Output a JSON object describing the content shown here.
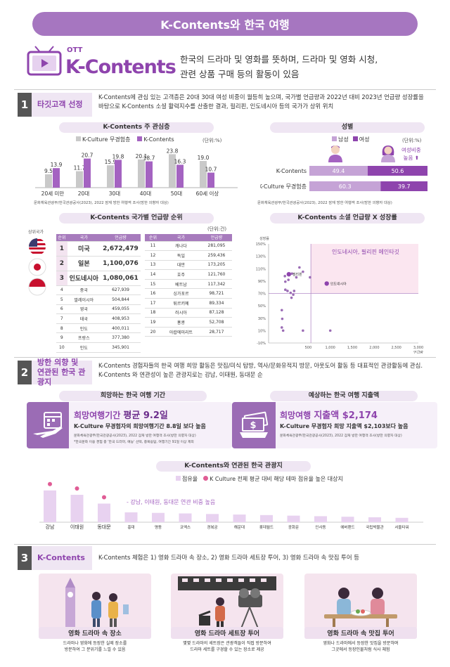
{
  "header": {
    "title": "K-Contents와 한국 여행"
  },
  "hero": {
    "ott": "OTT",
    "brand": "K-Contents",
    "line1": "한국의 드라마 및 영화를 뜻하며, 드라마 및 영화 시청,",
    "line2": "관련 상품 구매 등의 활동이 있음"
  },
  "s1": {
    "num": "1",
    "tag": "타깃고객 선정",
    "desc1": "K-Contents에 관심 있는 고객층은 20대 30대 여성 비중이 월등히 높으며, 국가별 언급량과 2022년 대비 2023년 언급량 성장률을",
    "desc2": "바탕으로 K-Contents 소셜 활력지수를 산출한 결과, 필리핀, 인도네시아 등의 국가가 상위 위치"
  },
  "age_chart": {
    "title": "K-Contents 주 관심층",
    "legend_a": "K-Culture 무경험층",
    "legend_b": "K-Contents",
    "unit": "(단위:%)",
    "source": "문화체육관광부/한국관광공사(2023), 2022 잠재 방한 여행객 조사(방한 의향자 대상)"
  },
  "gender_chart": {
    "title": "성별",
    "legend_m": "남성",
    "legend_f": "여성",
    "unit": "(단위:%)",
    "callout1": "여성비중",
    "callout2": "높음",
    "source": "문화체육관광부/한국관광공사(2023), 2022 잠재 방한 여행객 조사(방한 의향자 대상)"
  },
  "rank": {
    "title": "K-Contents 국가별 언급량 순위",
    "unit": "(단위:건)",
    "side_label": "상위국가",
    "h_rank": "순위",
    "h_country": "국가",
    "h_volume": "언급량"
  },
  "scatter": {
    "title": "K-Contents 소셜 언급량 X 성장률",
    "annotation": "인도네시아, 필리핀 메인타깃",
    "ylabel": "성장률",
    "xlabel": "언급량"
  },
  "s2": {
    "num": "2",
    "tag1": "방한 의향 및",
    "tag2": "연관된 한국 관광지",
    "desc1": "K-Contents 경험자들의 한국 여행 희망 활동은 맛집/미식 탐방, 역사/문화유적지 방문, 아웃도어 활동 등 대표적인 관광활동에 관심.",
    "desc2": "K-Contents 와 연관성이 높은 관광지로는 강남, 이태원, 동대문 순"
  },
  "period": {
    "title": "희망하는 한국 여행 기간",
    "headline_a": "희망여행기간 ",
    "headline_b": "평균 9.2일",
    "sub": "K-Culture 무경험자의 희망여행기간 8.8일 보다 높음",
    "src": "문화체육관광부/한국관광공사(2023), 2022 잠재 방한 여행객 조사(방한 의향자 대상)",
    "note": "*한국문화 이용 경험 중 '한국 드라마, 예능' 선택, 중복응답, 여행기간 91일 이상 제외"
  },
  "spend": {
    "title": "예상하는 한국 여행 지출액",
    "headline_a": "희망여행 ",
    "headline_b": "지출액 $2,174",
    "sub": "K-Culture 무경험자 희망 지출액 $2,103보다 높음",
    "src": "문화체육관광부/한국관광공사(2023), 2022 잠재 방한 여행객 조사(방한 의향자 대상)"
  },
  "spots": {
    "title": "K-Contents와 연관된 한국 관광지",
    "legend_a": "점유율",
    "legend_b": "K Culture 전체 평균 대비 해당 테마 점유율 높은 대상지",
    "note": "- 강남, 이태원, 동대문 연관 비중 높음"
  },
  "s3": {
    "num": "3",
    "tag": "K-Contents",
    "desc": "K-Contents 체험은 1) 영화 드라마 속 장소, 2) 영화 드라마 세트장 투어, 3) 영화 드라마 속 맛집 투어 등"
  },
  "cards": [
    {
      "title": "영화 드라마 속 장소",
      "l1": "드라마나 영화에 등장한 실제 장소를",
      "l2": "방문하여 그 분위기를 느낄 수 있음"
    },
    {
      "title": "영화 드라마 세트장 투어",
      "l1": "몇몇 드라마의 세트장은 관광객들이 직접 방문하여",
      "l2": "드라마 세트를 구경할 수 있는 장소로 제공"
    },
    {
      "title": "영화 드라마 속 맛집 투어",
      "l1": "영화나 드라마에서 등장한 맛집을 방문하며",
      "l2": "그곳에서 등장인물처럼 식사 체험"
    }
  ],
  "chart_data": [
    {
      "type": "bar",
      "title": "K-Contents 주 관심층",
      "categories": [
        "20세 미만",
        "20대",
        "30대",
        "40대",
        "50대",
        "60세 이상"
      ],
      "series": [
        {
          "name": "K-Culture 무경험층",
          "values": [
            9.5,
            11.7,
            15.9,
            20.1,
            23.8,
            19.0
          ]
        },
        {
          "name": "K-Contents",
          "values": [
            13.9,
            20.7,
            19.8,
            18.7,
            16.3,
            10.7
          ]
        }
      ],
      "ylabel": "(단위:%)",
      "colors": [
        "#c9c9c9",
        "#a463c1"
      ]
    },
    {
      "type": "bar",
      "title": "성별",
      "stacked": true,
      "categories": [
        "K-Contents",
        "K-Culture 무경험층"
      ],
      "series": [
        {
          "name": "남성",
          "values": [
            49.4,
            60.3
          ]
        },
        {
          "name": "여성",
          "values": [
            50.6,
            39.7
          ]
        }
      ],
      "colors": [
        "#c5a3d6",
        "#8e44ad"
      ]
    },
    {
      "type": "table",
      "title": "K-Contents 국가별 언급량 순위",
      "rows": [
        {
          "rank": "1",
          "country": "미국",
          "volume": "2,672,479"
        },
        {
          "rank": "2",
          "country": "일본",
          "volume": "1,100,076"
        },
        {
          "rank": "3",
          "country": "인도네시아",
          "volume": "1,080,061"
        },
        {
          "rank": "4",
          "country": "중국",
          "volume": "627,939"
        },
        {
          "rank": "5",
          "country": "말레이시아",
          "volume": "504,844"
        },
        {
          "rank": "6",
          "country": "영국",
          "volume": "459,055"
        },
        {
          "rank": "7",
          "country": "태국",
          "volume": "408,953"
        },
        {
          "rank": "8",
          "country": "인도",
          "volume": "400,011"
        },
        {
          "rank": "9",
          "country": "프랑스",
          "volume": "377,380"
        },
        {
          "rank": "10",
          "country": "인도",
          "volume": "345,901"
        }
      ],
      "rows2": [
        {
          "rank": "11",
          "country": "캐나다",
          "volume": "281,095"
        },
        {
          "rank": "12",
          "country": "독일",
          "volume": "259,436"
        },
        {
          "rank": "13",
          "country": "대만",
          "volume": "173,205"
        },
        {
          "rank": "14",
          "country": "호주",
          "volume": "121,760"
        },
        {
          "rank": "15",
          "country": "베트남",
          "volume": "117,342"
        },
        {
          "rank": "16",
          "country": "싱가포르",
          "volume": "98,721"
        },
        {
          "rank": "17",
          "country": "튀르키예",
          "volume": "89,334"
        },
        {
          "rank": "18",
          "country": "러시아",
          "volume": "87,128"
        },
        {
          "rank": "19",
          "country": "홍콩",
          "volume": "52,708"
        },
        {
          "rank": "20",
          "country": "아랍에미리트",
          "volume": "28,717"
        }
      ]
    },
    {
      "type": "scatter",
      "title": "K-Contents 소셜 언급량 X 성장률",
      "xticks": [
        "500",
        "1,000",
        "1,500",
        "2,000",
        "2,500",
        "3,000"
      ],
      "yticks": [
        "150%",
        "130%",
        "110%",
        "90%",
        "70%",
        "50%",
        "30%",
        "10%",
        "-10%"
      ],
      "xlim": [
        0,
        3000
      ],
      "ylim": [
        -10,
        150
      ],
      "points": [
        {
          "x": 60,
          "y": 101,
          "label": "필리핀",
          "hl": true
        },
        {
          "x": 540,
          "y": 96,
          "label": "",
          "hl": false
        },
        {
          "x": 920,
          "y": 86,
          "label": "인도네시아",
          "hl": true
        },
        {
          "x": 120,
          "y": 63,
          "label": "",
          "hl": false
        },
        {
          "x": -20,
          "y": 89,
          "label": "",
          "hl": false
        },
        {
          "x": 50,
          "y": 92,
          "label": "",
          "hl": false
        },
        {
          "x": 130,
          "y": 102,
          "label": "",
          "hl": false
        },
        {
          "x": -30,
          "y": 98,
          "label": "",
          "hl": false
        },
        {
          "x": -20,
          "y": 76,
          "label": "",
          "hl": false
        },
        {
          "x": 30,
          "y": 74,
          "label": "",
          "hl": false
        },
        {
          "x": 100,
          "y": 71,
          "label": "",
          "hl": false
        },
        {
          "x": 160,
          "y": 68,
          "label": "",
          "hl": false
        },
        {
          "x": 180,
          "y": 74,
          "label": "",
          "hl": false
        },
        {
          "x": -100,
          "y": 43,
          "label": "",
          "hl": false
        },
        {
          "x": -90,
          "y": 29,
          "label": "",
          "hl": false
        },
        {
          "x": -100,
          "y": 15,
          "label": "",
          "hl": false
        },
        {
          "x": 380,
          "y": 10,
          "label": "",
          "hl": false
        },
        {
          "x": -70,
          "y": 10,
          "label": "",
          "hl": false
        },
        {
          "x": 1000,
          "y": 10,
          "label": "",
          "hl": false
        },
        {
          "x": 380,
          "y": 105,
          "label": "",
          "hl": false
        },
        {
          "x": 300,
          "y": 112,
          "label": "",
          "hl": false
        },
        {
          "x": 230,
          "y": 96,
          "label": "",
          "hl": false
        }
      ]
    },
    {
      "type": "bar",
      "title": "K-Contents와 연관된 한국 관광지",
      "categories": [
        "강남",
        "이태원",
        "동대문",
        "홍대",
        "명동",
        "코엑스",
        "경복궁",
        "해운대",
        "롯데월드",
        "광화문",
        "인사동",
        "에버랜드",
        "국립박물관",
        "서울타워"
      ],
      "series": [
        {
          "name": "점유율",
          "values": [
            58,
            50,
            34,
            18,
            17,
            16,
            15,
            14,
            13,
            12,
            11,
            10,
            9,
            8
          ]
        }
      ],
      "highlighted": [
        "강남",
        "이태원",
        "동대문"
      ],
      "colors": [
        "#e8d2f0",
        "#e05c95"
      ]
    }
  ]
}
